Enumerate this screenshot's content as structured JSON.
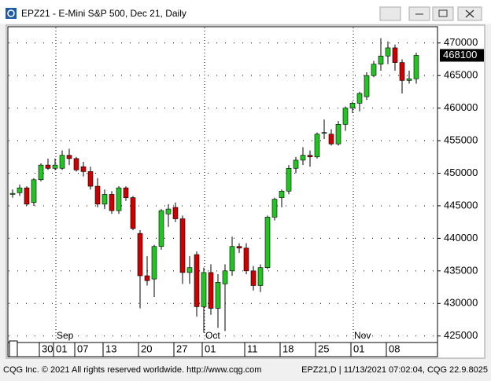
{
  "window_title": "EPZ21 - E-Mini S&P 500, Dec 21, Daily",
  "chart_data": {
    "type": "candlestick",
    "categories": [
      null,
      null,
      null,
      null,
      "30",
      null,
      "01",
      null,
      null,
      "07",
      null,
      null,
      null,
      "13",
      null,
      null,
      null,
      null,
      "20",
      null,
      null,
      null,
      null,
      "27",
      null,
      null,
      null,
      "01",
      null,
      null,
      null,
      null,
      null,
      "11",
      null,
      null,
      null,
      null,
      "18",
      null,
      null,
      null,
      null,
      "25",
      null,
      null,
      null,
      null,
      "01",
      null,
      null,
      null,
      null,
      "08",
      null,
      null,
      null,
      null
    ],
    "month_categories": [
      null,
      null,
      null,
      null,
      null,
      null,
      "Sep",
      null,
      null,
      null,
      null,
      null,
      null,
      null,
      null,
      null,
      null,
      null,
      null,
      null,
      null,
      null,
      null,
      null,
      null,
      null,
      null,
      "Oct",
      null,
      null,
      null,
      null,
      null,
      null,
      null,
      null,
      null,
      null,
      null,
      null,
      null,
      null,
      null,
      null,
      null,
      null,
      null,
      null,
      "Nov",
      null,
      null,
      null,
      null,
      null,
      null,
      null,
      null,
      null
    ],
    "open": [
      446750,
      447000,
      447750,
      445500,
      449000,
      451250,
      450750,
      450750,
      452750,
      452250,
      451000,
      450250,
      448000,
      445250,
      446750,
      444250,
      447750,
      446250,
      440750,
      434250,
      433750,
      438750,
      443750,
      444750,
      443000,
      434750,
      437500,
      429500,
      434750,
      429250,
      433000,
      435000,
      438750,
      438500,
      435000,
      432750,
      435500,
      443250,
      446250,
      447250,
      450750,
      452000,
      452750,
      452500,
      456250,
      456000,
      454500,
      457500,
      460000,
      460750,
      461750,
      465000,
      466750,
      468000,
      469250,
      467000,
      464250,
      464500
    ],
    "high": [
      447500,
      448250,
      448000,
      449250,
      451500,
      452250,
      452250,
      453500,
      453750,
      452500,
      451750,
      451000,
      449250,
      447500,
      447250,
      448000,
      448000,
      446500,
      441250,
      437250,
      439000,
      444500,
      445250,
      445500,
      443500,
      437250,
      438000,
      435500,
      436000,
      434500,
      436000,
      440250,
      439250,
      439250,
      435750,
      436000,
      443500,
      446250,
      447500,
      451250,
      452500,
      454000,
      453500,
      456250,
      458250,
      456750,
      458000,
      460250,
      461000,
      462500,
      465500,
      467250,
      470750,
      470250,
      469750,
      467500,
      465750,
      468500
    ],
    "low": [
      446250,
      446500,
      445000,
      445000,
      448750,
      450500,
      450500,
      450500,
      451250,
      450250,
      449500,
      447500,
      444750,
      444500,
      443750,
      443750,
      445750,
      441250,
      429250,
      432750,
      431000,
      438250,
      441750,
      442500,
      433000,
      433000,
      428000,
      425500,
      428250,
      426250,
      425750,
      434250,
      437750,
      434500,
      432000,
      431750,
      435250,
      442750,
      444750,
      446750,
      450000,
      451250,
      451000,
      452250,
      455250,
      454250,
      454250,
      456500,
      459250,
      459500,
      461250,
      464750,
      465750,
      466750,
      465750,
      462250,
      463750,
      463750
    ],
    "close": [
      446900,
      447750,
      445250,
      449000,
      451250,
      450750,
      451250,
      452750,
      452250,
      450500,
      450250,
      448000,
      445250,
      446750,
      444250,
      447750,
      446250,
      441500,
      434250,
      433500,
      438750,
      444250,
      444500,
      443000,
      434750,
      435500,
      429500,
      434750,
      429250,
      433250,
      435000,
      438750,
      438500,
      435000,
      432750,
      435500,
      443250,
      446000,
      447250,
      450750,
      452000,
      452750,
      452500,
      456000,
      456250,
      454500,
      457500,
      460000,
      460750,
      462250,
      465000,
      466750,
      468000,
      469250,
      467000,
      464250,
      464500,
      468100
    ],
    "up_color": "#22c322",
    "down_color": "#cc0000",
    "ylim": [
      424000,
      472500
    ],
    "yticks": [
      425000,
      430000,
      435000,
      440000,
      445000,
      450000,
      455000,
      460000,
      465000,
      470000
    ],
    "grid": true,
    "last_price": 468100
  },
  "footer_left": "CQG Inc. © 2021 All rights reserved worldwide. http://www.cqg.com",
  "footer_right": "EPZ21,D | 11/13/2021 07:02:04, CQG 22.9.8025"
}
